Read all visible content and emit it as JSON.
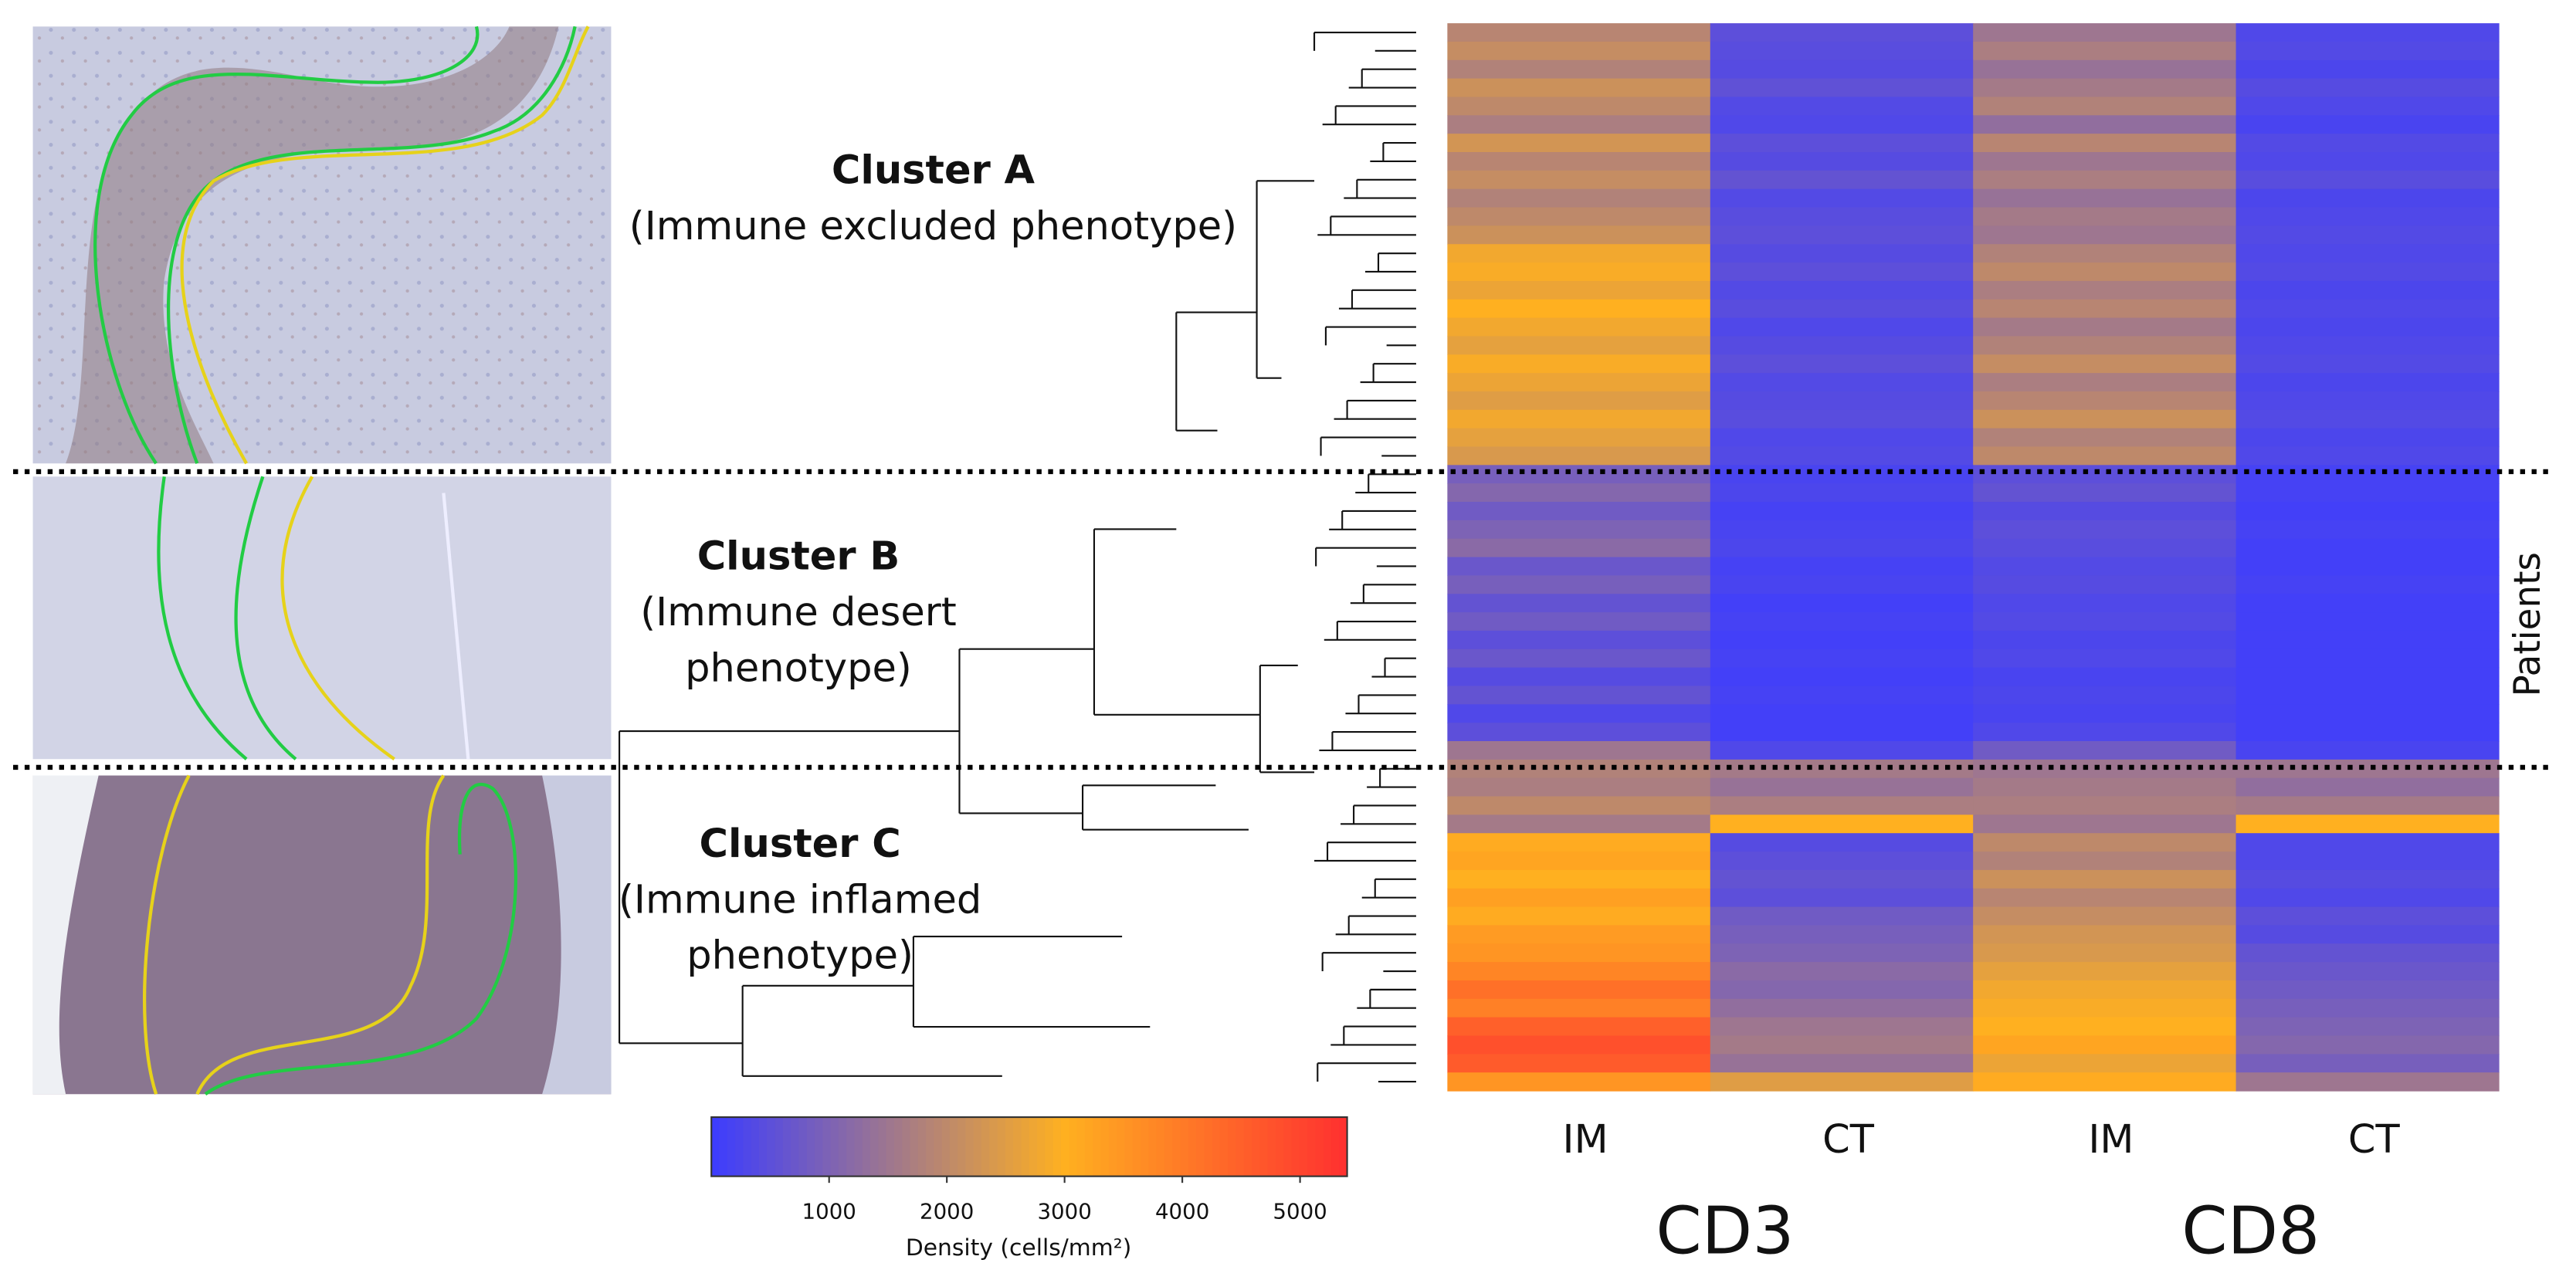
{
  "chart_data": {
    "type": "heatmap",
    "columns": [
      "IM",
      "CT",
      "IM",
      "CT"
    ],
    "groups": [
      "CD3",
      "CD8"
    ],
    "row_axis_label": "Patients",
    "clusters": [
      {
        "name": "Cluster A",
        "description": [
          "(Immune excluded phenotype)"
        ],
        "rows": 24
      },
      {
        "name": "Cluster B",
        "description": [
          "(Immune desert",
          "phenotype)"
        ],
        "rows": 16
      },
      {
        "name": "Cluster C",
        "description": [
          "(Immune inflamed",
          "phenotype)"
        ],
        "rows": 18
      }
    ],
    "matrix": [
      [
        1900,
        500,
        1500,
        300
      ],
      [
        2100,
        450,
        1700,
        350
      ],
      [
        1800,
        400,
        1400,
        250
      ],
      [
        2200,
        550,
        1600,
        400
      ],
      [
        2000,
        350,
        1800,
        300
      ],
      [
        1700,
        300,
        1300,
        200
      ],
      [
        2300,
        500,
        1900,
        350
      ],
      [
        1900,
        400,
        1500,
        300
      ],
      [
        2100,
        600,
        1700,
        450
      ],
      [
        1800,
        350,
        1400,
        250
      ],
      [
        2000,
        450,
        1600,
        300
      ],
      [
        2200,
        500,
        1500,
        350
      ],
      [
        2800,
        400,
        1800,
        300
      ],
      [
        2900,
        500,
        2000,
        350
      ],
      [
        2700,
        350,
        1700,
        250
      ],
      [
        3000,
        450,
        1900,
        300
      ],
      [
        2800,
        300,
        1600,
        250
      ],
      [
        2600,
        400,
        1800,
        300
      ],
      [
        2900,
        500,
        2100,
        350
      ],
      [
        2700,
        350,
        1700,
        250
      ],
      [
        2500,
        400,
        1900,
        300
      ],
      [
        2800,
        450,
        2200,
        350
      ],
      [
        2600,
        300,
        1800,
        250
      ],
      [
        2400,
        350,
        2000,
        300
      ],
      [
        900,
        200,
        500,
        150
      ],
      [
        1100,
        250,
        600,
        150
      ],
      [
        800,
        150,
        400,
        100
      ],
      [
        1000,
        200,
        500,
        150
      ],
      [
        1200,
        250,
        450,
        100
      ],
      [
        700,
        150,
        350,
        100
      ],
      [
        900,
        200,
        400,
        150
      ],
      [
        600,
        100,
        300,
        100
      ],
      [
        800,
        150,
        350,
        100
      ],
      [
        500,
        100,
        250,
        100
      ],
      [
        700,
        150,
        300,
        100
      ],
      [
        400,
        100,
        200,
        100
      ],
      [
        600,
        150,
        250,
        100
      ],
      [
        300,
        100,
        200,
        100
      ],
      [
        500,
        100,
        300,
        100
      ],
      [
        1500,
        300,
        800,
        200
      ],
      [
        1800,
        1600,
        1500,
        1500
      ],
      [
        1700,
        1400,
        1600,
        1300
      ],
      [
        2000,
        1700,
        1700,
        1600
      ],
      [
        1600,
        3000,
        1500,
        3000
      ],
      [
        3100,
        400,
        2000,
        300
      ],
      [
        3200,
        500,
        1800,
        300
      ],
      [
        3000,
        600,
        2200,
        400
      ],
      [
        3300,
        500,
        1900,
        300
      ],
      [
        3100,
        800,
        2100,
        500
      ],
      [
        3400,
        900,
        2300,
        400
      ],
      [
        3500,
        1000,
        2400,
        600
      ],
      [
        3800,
        1200,
        2600,
        700
      ],
      [
        4200,
        1100,
        2800,
        800
      ],
      [
        3900,
        1300,
        2900,
        900
      ],
      [
        4500,
        1500,
        3000,
        1000
      ],
      [
        4800,
        1600,
        3200,
        1100
      ],
      [
        4600,
        1400,
        2700,
        900
      ],
      [
        3500,
        2500,
        3100,
        1500
      ]
    ],
    "colorbar": {
      "label": "Density (cells/mm²)",
      "lim": [
        0,
        5400
      ],
      "ticks": [
        1000,
        2000,
        3000,
        4000,
        5000
      ],
      "colorscale": [
        [
          0,
          "#3c3cff"
        ],
        [
          3000,
          "#ffb020"
        ],
        [
          5400,
          "#ff3030"
        ]
      ]
    }
  }
}
